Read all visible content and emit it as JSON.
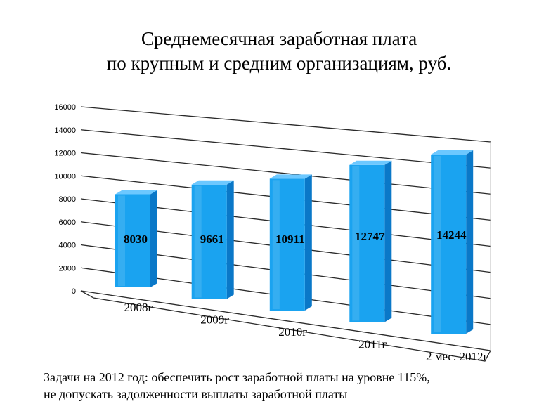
{
  "title": {
    "line1": "Среднемесячная заработная плата",
    "line2": "по крупным и средним организациям, руб."
  },
  "chart_data": {
    "type": "bar",
    "style": "3d-column",
    "categories": [
      "2008г",
      "2009г",
      "2010г",
      "2011г",
      "2 мес. 2012г"
    ],
    "values": [
      8030,
      9661,
      10911,
      12747,
      14244
    ],
    "data_labels": [
      "8030",
      "9661",
      "10911",
      "12747",
      "14244"
    ],
    "ylim": [
      0,
      16000
    ],
    "yticks": [
      0,
      2000,
      4000,
      6000,
      8000,
      10000,
      12000,
      14000,
      16000
    ],
    "grid": true,
    "bar_color": "#1aa3f0",
    "bar_color_dark": "#0a78c8",
    "bar_color_light": "#6cc8ff"
  },
  "footer": {
    "line1": "Задачи на 2012 год: обеспечить рост заработной платы на уровне 115%,",
    "line2": "не допускать задолженности выплаты заработной платы"
  }
}
